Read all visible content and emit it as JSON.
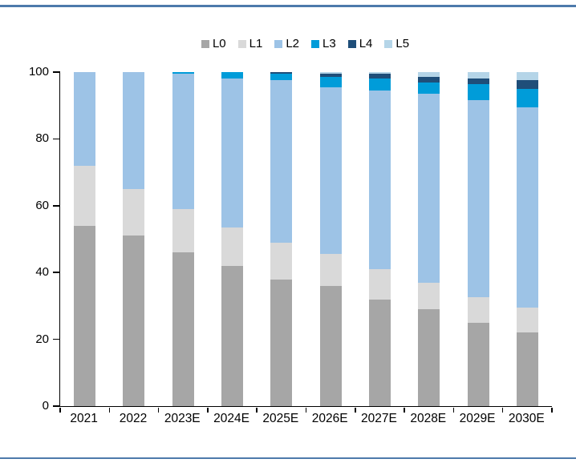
{
  "colors": {
    "rule": "#4d7aab",
    "axis": "#000000",
    "text": "#000000"
  },
  "chart_data": {
    "type": "bar",
    "stacked": true,
    "title": "",
    "xlabel": "",
    "ylabel": "",
    "ylim": [
      0,
      100
    ],
    "y_ticks": [
      "0",
      "20",
      "40",
      "60",
      "80",
      "100"
    ],
    "grid": false,
    "legend_position": "top",
    "categories": [
      "2021",
      "2022",
      "2023E",
      "2024E",
      "2025E",
      "2026E",
      "2027E",
      "2028E",
      "2029E",
      "2030E"
    ],
    "series": [
      {
        "name": "L0",
        "color": "#a6a6a6",
        "values": [
          54,
          51,
          46,
          42,
          38,
          36,
          32,
          29,
          25,
          22
        ]
      },
      {
        "name": "L1",
        "color": "#d9d9d9",
        "values": [
          18,
          14,
          13,
          11.5,
          11,
          9.5,
          9,
          8,
          7.5,
          7.5
        ]
      },
      {
        "name": "L2",
        "color": "#9dc3e6",
        "values": [
          28,
          35,
          40.5,
          44.5,
          48.5,
          50,
          53.5,
          56.5,
          59,
          60
        ]
      },
      {
        "name": "L3",
        "color": "#009cd9",
        "values": [
          0,
          0,
          0.5,
          2,
          2,
          3,
          3.5,
          3.5,
          5,
          5.5
        ]
      },
      {
        "name": "L4",
        "color": "#1f4e79",
        "values": [
          0,
          0,
          0,
          0,
          0.5,
          1,
          1.5,
          1.5,
          1.5,
          2.5
        ]
      },
      {
        "name": "L5",
        "color": "#b5d5e8",
        "values": [
          0,
          0,
          0,
          0,
          0,
          0.5,
          0.5,
          1.5,
          2,
          2.5
        ]
      }
    ]
  }
}
